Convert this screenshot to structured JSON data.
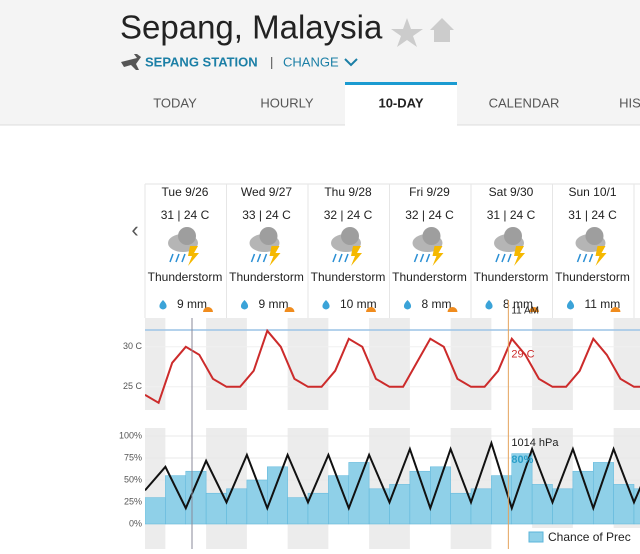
{
  "header": {
    "title": "Sepang, Malaysia",
    "station": "SEPANG STATION",
    "separator": "|",
    "change": "CHANGE"
  },
  "tabs": [
    "TODAY",
    "HOURLY",
    "10-DAY",
    "CALENDAR",
    "HIS"
  ],
  "active_tab": 2,
  "days": [
    {
      "date": "Tue 9/26",
      "temps": "31 | 24 C",
      "condition": "Thunderstorm",
      "precip": "9 mm"
    },
    {
      "date": "Wed 9/27",
      "temps": "33 | 24 C",
      "condition": "Thunderstorm",
      "precip": "9 mm"
    },
    {
      "date": "Thu 9/28",
      "temps": "32 | 24 C",
      "condition": "Thunderstorm",
      "precip": "10 mm"
    },
    {
      "date": "Fri 9/29",
      "temps": "32 | 24 C",
      "condition": "Thunderstorm",
      "precip": "8 mm"
    },
    {
      "date": "Sat 9/30",
      "temps": "31 | 24 C",
      "condition": "Thunderstorm",
      "precip": "8 mm"
    },
    {
      "date": "Sun 10/1",
      "temps": "31 | 24 C",
      "condition": "Thunderstorm",
      "precip": "11 mm"
    }
  ],
  "temperature_chart": {
    "ylim": [
      22.1,
      33.6
    ],
    "yticks": [
      {
        "value": 30,
        "label": "30 C"
      },
      {
        "value": 25,
        "label": "25 C"
      }
    ],
    "color": "#cc2b2b",
    "values": [
      24,
      23,
      28,
      30,
      29,
      26,
      25,
      25,
      27,
      32,
      30,
      26,
      25,
      25,
      27,
      31,
      30,
      26,
      25,
      25,
      28,
      31,
      30,
      26,
      25,
      25,
      27,
      31,
      29,
      26,
      25,
      25,
      27,
      31,
      29,
      26,
      25,
      25
    ],
    "marker_time": "11 AM",
    "marker_value": {
      "value": 29,
      "label": "29 C"
    }
  },
  "pressure_chart": {
    "precip_ylim": [
      0,
      100
    ],
    "yticks": [
      {
        "value": 100,
        "label": "100%"
      },
      {
        "value": 75,
        "label": "75%"
      },
      {
        "value": 50,
        "label": "50%"
      },
      {
        "value": 25,
        "label": "25%"
      },
      {
        "value": 0,
        "label": "0%"
      }
    ],
    "precip_values": [
      30,
      55,
      60,
      35,
      40,
      50,
      65,
      30,
      35,
      55,
      70,
      40,
      45,
      60,
      65,
      35,
      40,
      55,
      80,
      45,
      40,
      60,
      70,
      45,
      40,
      55
    ],
    "precip_color": "#8fd0e8",
    "pressure_ylim": [
      1007.5,
      1014.6
    ],
    "pressure_values": [
      1010,
      1012,
      1008.5,
      1012.5,
      1009,
      1013,
      1008.5,
      1013,
      1009,
      1013,
      1008.5,
      1013,
      1009,
      1013.5,
      1008.5,
      1013.5,
      1009,
      1014,
      1008.5,
      1013.5,
      1009,
      1013.5,
      1008.5,
      1013.5,
      1009,
      1013
    ],
    "marker_pressure": "1014 hPa",
    "marker_precip": {
      "value": 80,
      "label": "80%"
    },
    "legend": "Chance of Prec"
  }
}
